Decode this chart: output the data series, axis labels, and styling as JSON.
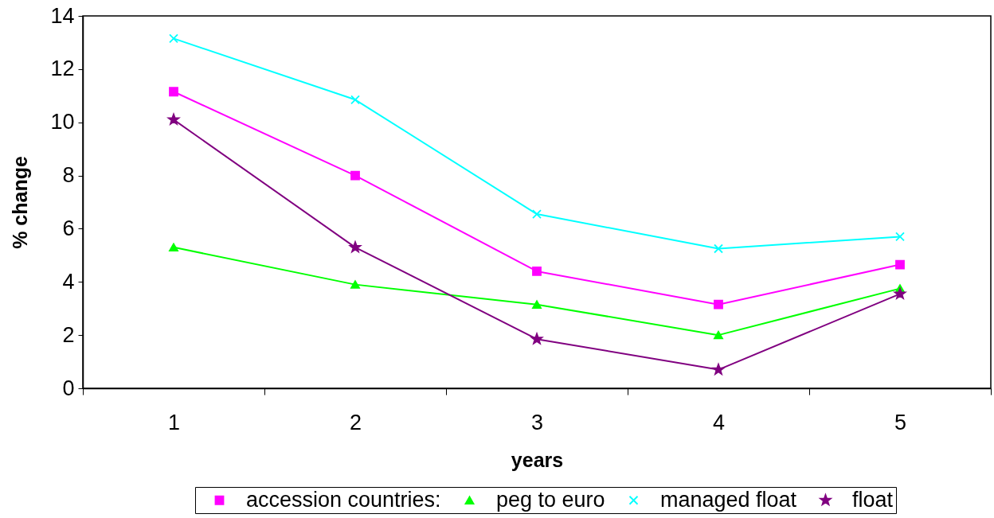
{
  "chart_data": {
    "type": "line",
    "xlabel": "years",
    "ylabel": "% change",
    "categories": [
      "1",
      "2",
      "3",
      "4",
      "5"
    ],
    "ylim": [
      0,
      14
    ],
    "yticks": [
      0,
      2,
      4,
      6,
      8,
      10,
      12,
      14
    ],
    "legend": "bottom",
    "series": [
      {
        "name": "accession countries:",
        "color": "#ff00ff",
        "marker": "square",
        "values": [
          11.15,
          8.0,
          4.4,
          3.15,
          4.65
        ]
      },
      {
        "name": "peg to euro",
        "color": "#00ff00",
        "marker": "triangle",
        "values": [
          5.3,
          3.9,
          3.15,
          2.0,
          3.75
        ]
      },
      {
        "name": "managed float",
        "color": "#00ffff",
        "marker": "cross",
        "values": [
          13.15,
          10.85,
          6.55,
          5.25,
          5.7
        ]
      },
      {
        "name": "float",
        "color": "#800080",
        "marker": "star",
        "values": [
          10.1,
          5.3,
          1.85,
          0.7,
          3.55
        ]
      }
    ]
  }
}
